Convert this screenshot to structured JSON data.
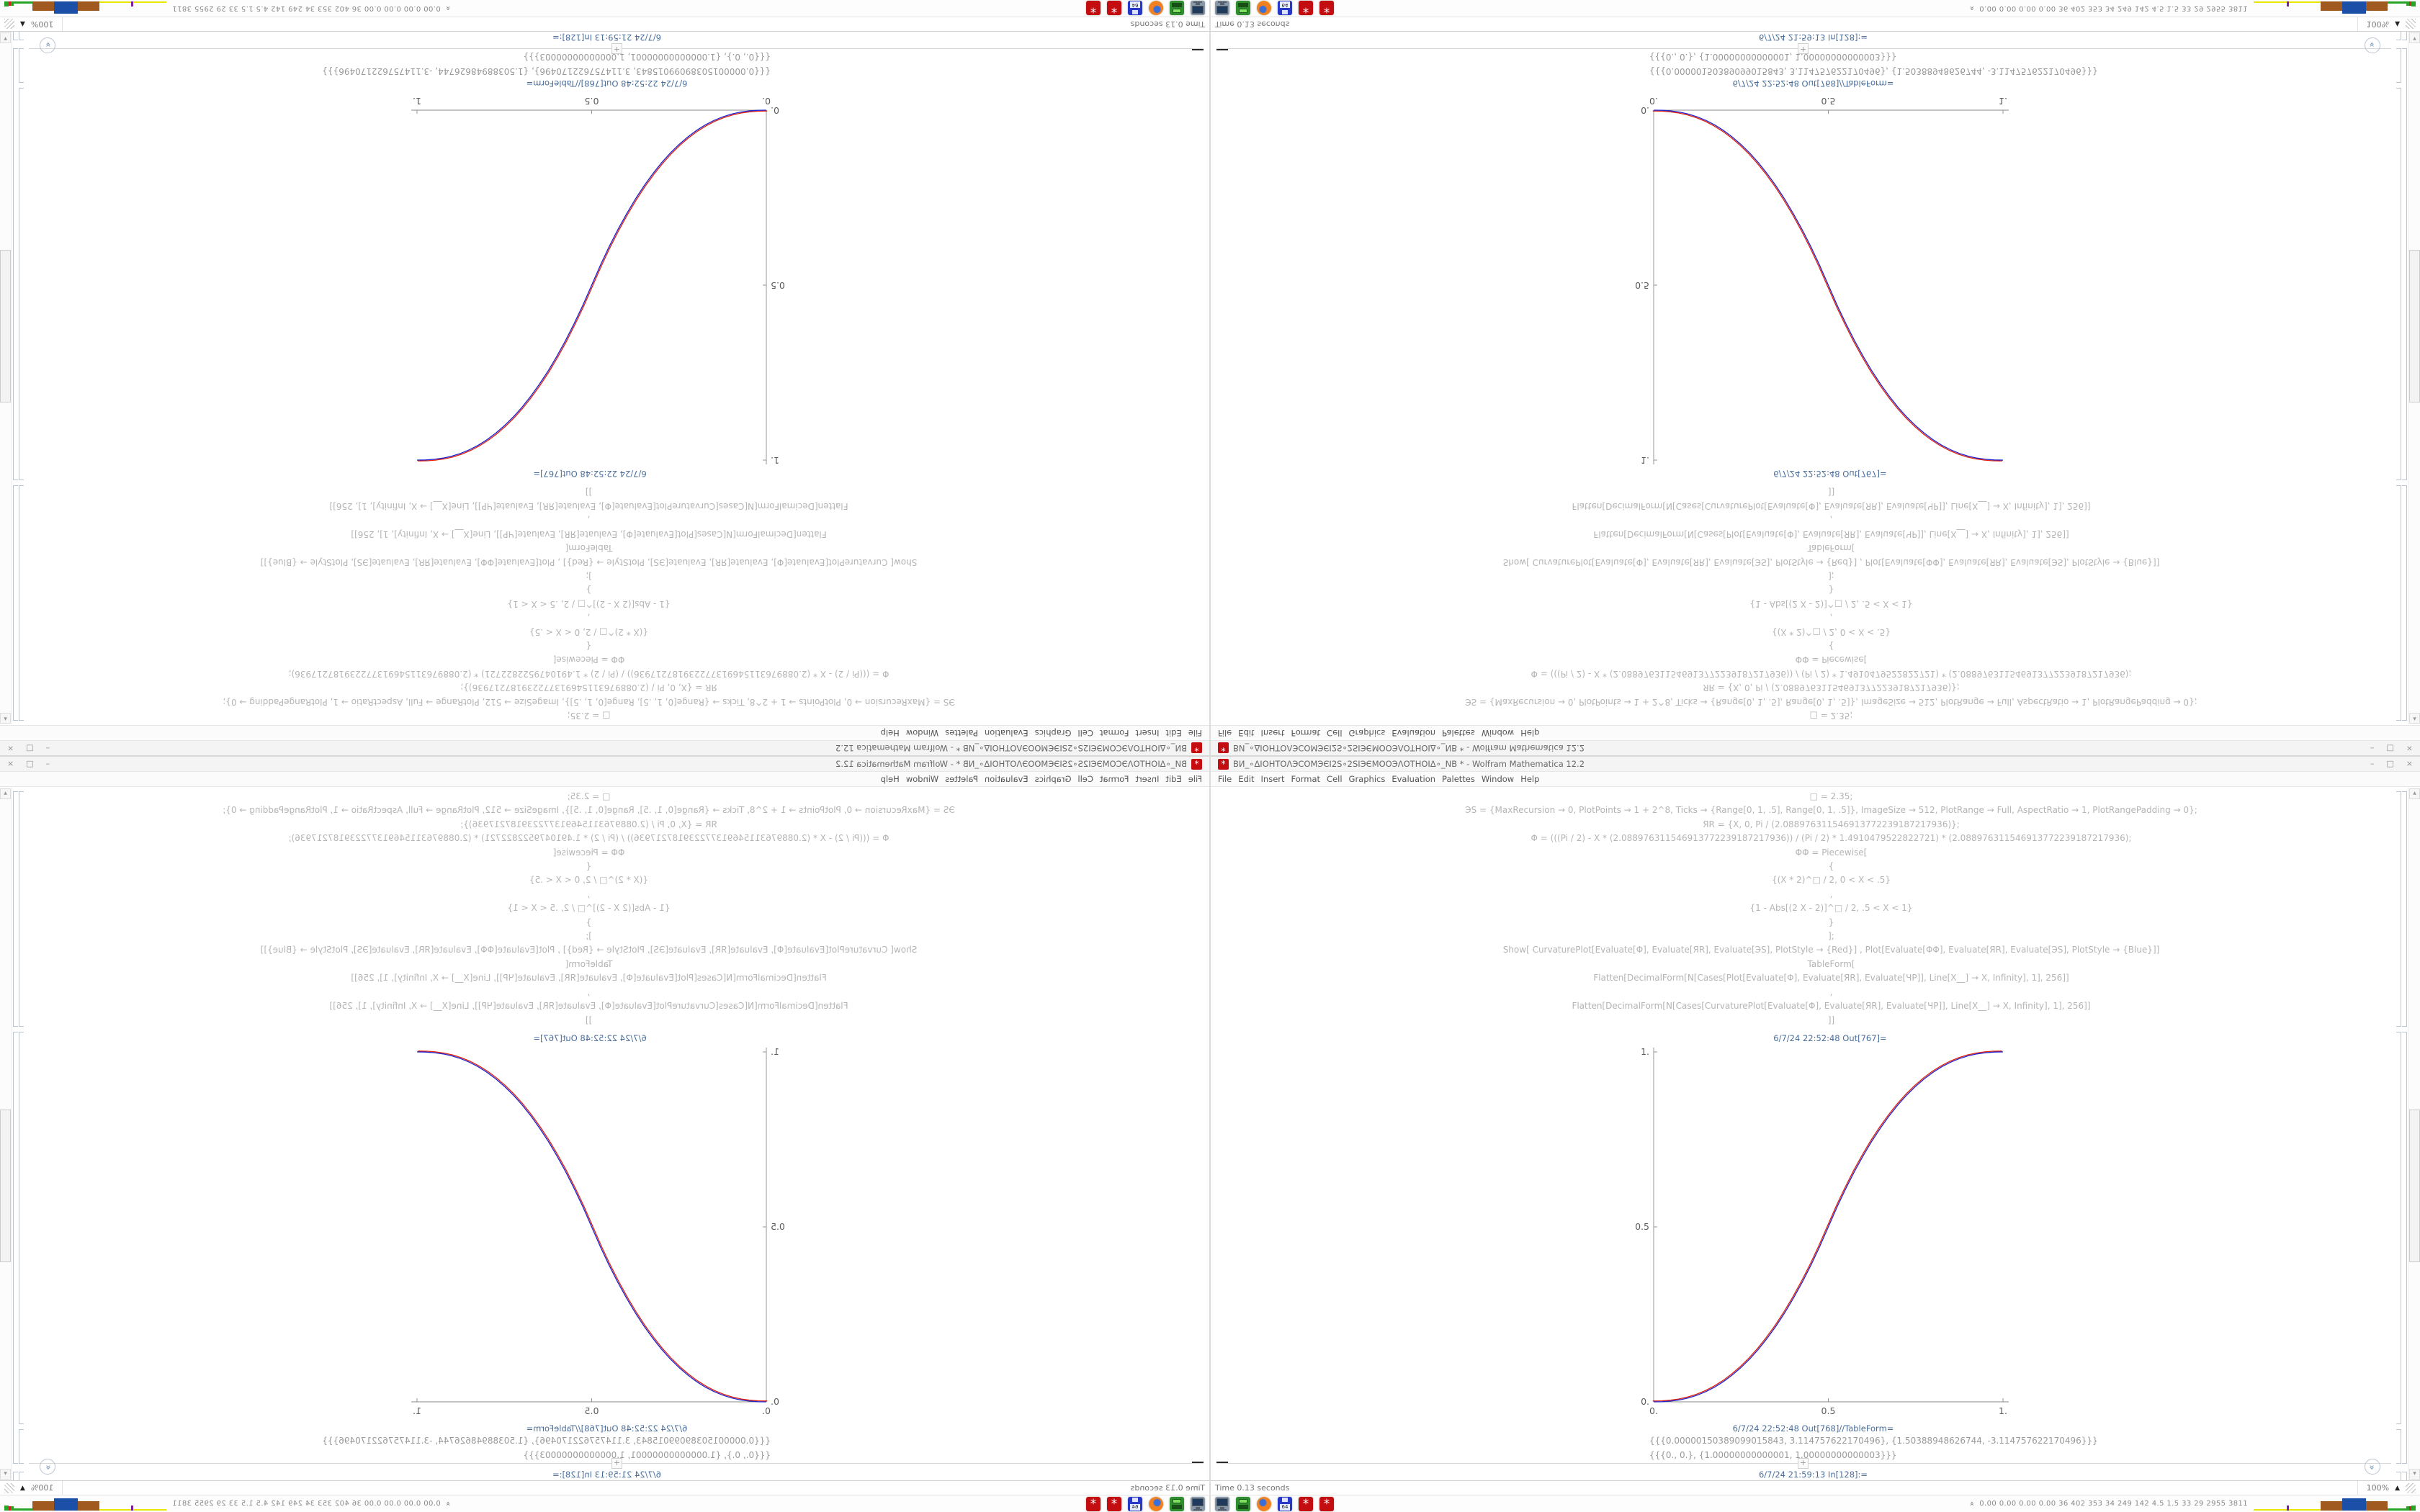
{
  "window": {
    "title": "ВИ_∘ΔІОНТОΛЭСОМЭЄІ2S∘2SІЭЄМООЭΛОТНОІΔ∘_NB * - Wolfram Mathematica 12.2",
    "app_icon_glyph": "*",
    "menu": [
      "File",
      "Edit",
      "Insert",
      "Format",
      "Cell",
      "Graphics",
      "Evaluation",
      "Palettes",
      "Window",
      "Help"
    ],
    "controls": [
      {
        "name": "minimize-button",
        "glyph": "–"
      },
      {
        "name": "maximize-button",
        "glyph": "□"
      },
      {
        "name": "close-button",
        "glyph": "×"
      }
    ]
  },
  "notebook": {
    "input_lines": [
      "□ = 2.35;",
      "ЭS = {MaxRecursion → 0, PlotPoints → 1 + 2^8, Ticks → {Range[0, 1, .5], Range[0, 1, .5]}, ImageSize → 512, PlotRange → Full, AspectRatio → 1, PlotRangePadding → 0};",
      "ЯR = {X, 0, Pi / (2.088976311546913772239187217936)};",
      "Φ = (((Pi / 2) - X * (2.088976311546913772239187217936)) / (Pi / 2) * 1.4910479522822721) * (2.088976311546913772239187217936);",
      "ΦΦ = Piecewise[",
      "{",
      "{(X * 2)^□ / 2, 0 < X < .5}",
      ",",
      "{1 - Abs[(2 X - 2)]^□ / 2, .5 < X < 1}",
      "}",
      "];",
      "Show[  CurvaturePlot[Evaluate[Φ], Evaluate[ЯR], Evaluate[ЭS], PlotStyle → {Red}]  ,  Plot[Evaluate[ΦΦ], Evaluate[ЯR], Evaluate[ЭS], PlotStyle → {Blue}]]",
      "TableForm[",
      "Flatten[DecimalForm[N[Cases[Plot[Evaluate[Φ], Evaluate[ЯR], Evaluate[ЧP]], Line[X__] → X, Infinity], 1], 256]]",
      ",",
      "Flatten[DecimalForm[N[Cases[CurvaturePlot[Evaluate[Φ], Evaluate[ЯR], Evaluate[ЧP]], Line[X__] → X, Infinity], 1], 256]]",
      "]]"
    ],
    "out_plot_label": "6/7/24 22:52:48 Out[767]=",
    "out_table_label": "6/7/24 22:52:48 Out[768]//TableForm=",
    "table_rows": [
      "{{{0.00000150389099015843, 3.114757622170496}, {1.50388948626744, -3.114757622170496}}}",
      "{{{0., 0.}, {1.00000000000001, 1.00000000000003}}}"
    ],
    "insert_plus_label": "+",
    "next_in_label": "6/7/24 21:59:13  In[128]:=",
    "suggest_glyph": "»"
  },
  "chart_data": {
    "type": "line",
    "title": "",
    "xlabel": "",
    "ylabel": "",
    "xlim": [
      0,
      1
    ],
    "ylim": [
      0,
      1
    ],
    "x_ticks": [
      0,
      0.5,
      1
    ],
    "y_ticks": [
      0,
      0.5,
      1
    ],
    "x_tick_labels": [
      "0.",
      "0.5",
      "1."
    ],
    "y_tick_labels": [
      "0.",
      "0.5",
      "1."
    ],
    "grid": false,
    "legend": "none",
    "x": [
      0,
      0.025,
      0.05,
      0.075,
      0.1,
      0.125,
      0.15,
      0.175,
      0.2,
      0.225,
      0.25,
      0.275,
      0.3,
      0.325,
      0.35,
      0.375,
      0.4,
      0.425,
      0.45,
      0.475,
      0.5,
      0.525,
      0.55,
      0.575,
      0.6,
      0.625,
      0.65,
      0.675,
      0.7,
      0.725,
      0.75,
      0.775,
      0.8,
      0.825,
      0.85,
      0.875,
      0.9,
      0.925,
      0.95,
      0.975,
      1
    ],
    "series": [
      {
        "name": "CurvaturePlot[Φ] (Red)",
        "color": "#de2010",
        "y": [
          0,
          0.0004,
          0.0022,
          0.0058,
          0.0114,
          0.0192,
          0.0295,
          0.0424,
          0.058,
          0.0766,
          0.0981,
          0.1227,
          0.1505,
          0.1817,
          0.2162,
          0.2543,
          0.296,
          0.3412,
          0.3903,
          0.4432,
          0.5,
          0.5568,
          0.6097,
          0.6588,
          0.704,
          0.7457,
          0.7838,
          0.8183,
          0.8495,
          0.8773,
          0.9019,
          0.9234,
          0.942,
          0.9576,
          0.9705,
          0.9808,
          0.9886,
          0.9942,
          0.9978,
          0.9996,
          1
        ]
      },
      {
        "name": "Plot[ΦΦ] (Blue)",
        "color": "#2020cd",
        "y": [
          0,
          0.0004,
          0.0022,
          0.0058,
          0.0114,
          0.0192,
          0.0295,
          0.0424,
          0.058,
          0.0766,
          0.0981,
          0.1227,
          0.1505,
          0.1817,
          0.2162,
          0.2543,
          0.296,
          0.3412,
          0.3903,
          0.4432,
          0.5,
          0.5568,
          0.6097,
          0.6588,
          0.704,
          0.7457,
          0.7838,
          0.8183,
          0.8495,
          0.8773,
          0.9019,
          0.9234,
          0.942,
          0.9576,
          0.9705,
          0.9808,
          0.9886,
          0.9942,
          0.9978,
          0.9996,
          1
        ]
      }
    ]
  },
  "status_bar": {
    "message": "Time 0.13 seconds",
    "zoom_level": "100%",
    "zoom_menu_glyph": "▲"
  },
  "taskbar": {
    "icons": [
      {
        "name": "terminal-monitor",
        "kind": "monitor"
      },
      {
        "name": "file-manager",
        "kind": "green-drive"
      },
      {
        "name": "firefox-browser",
        "kind": "firefox"
      },
      {
        "name": "floppy-disk-64",
        "kind": "floppy",
        "label": "64"
      },
      {
        "name": "mathematica-window-1",
        "kind": "mathematica",
        "glyph": "*"
      },
      {
        "name": "mathematica-window-2",
        "kind": "mathematica",
        "glyph": "*"
      }
    ],
    "tray_collapse_glyph": "»",
    "tray_values": "0.00 0.00 0.00 0.00   36   402  353   34   249  142  4.5   1.5   33   29   2955 3811",
    "histogram": [
      {
        "color": "#e6e600",
        "w": 46,
        "h": 2
      },
      {
        "color": "#7a1fa0",
        "w": 3,
        "h": 7
      },
      {
        "color": "#e6e600",
        "w": 44,
        "h": 2
      },
      {
        "color": "#a05a20",
        "w": 30,
        "h": 13
      },
      {
        "color": "#1b4fa8",
        "w": 33,
        "h": 17
      },
      {
        "color": "#a05a20",
        "w": 30,
        "h": 13
      },
      {
        "color": "#27a527",
        "w": 26,
        "h": 3
      },
      {
        "color": "#27a527",
        "w": 4,
        "h": 6
      },
      {
        "color": "#cc2222",
        "w": 3,
        "h": 6
      },
      {
        "color": "#27a527",
        "w": 6,
        "h": 7
      }
    ]
  },
  "colors": {
    "cell_label": "#4a6e9c",
    "code_text": "#b4b4b4",
    "table_text": "#9a9a9a",
    "red_curve": "#de2010",
    "blue_curve": "#2020cd",
    "mathematica_icon_red": "#c40d11"
  }
}
